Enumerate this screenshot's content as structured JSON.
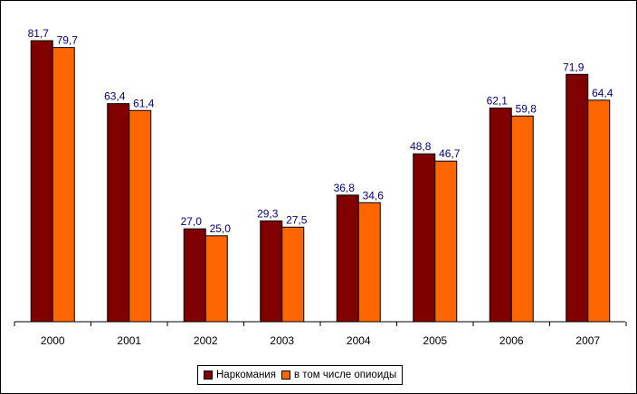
{
  "chart_data": {
    "type": "bar",
    "categories": [
      "2000",
      "2001",
      "2002",
      "2003",
      "2004",
      "2005",
      "2006",
      "2007"
    ],
    "series": [
      {
        "name": "Наркомания",
        "color": "#800000",
        "values": [
          81.7,
          63.4,
          27.0,
          29.3,
          36.8,
          48.8,
          62.1,
          71.9
        ],
        "labels": [
          "81,7",
          "63,4",
          "27,0",
          "29,3",
          "36,8",
          "48,8",
          "62,1",
          "71,9"
        ]
      },
      {
        "name": "в том числе опиоиды",
        "color": "#ff6600",
        "values": [
          79.7,
          61.4,
          25.0,
          27.5,
          34.6,
          46.7,
          59.8,
          64.4
        ],
        "labels": [
          "79,7",
          "61,4",
          "25,0",
          "27,5",
          "34,6",
          "46,7",
          "59,8",
          "64,4"
        ]
      }
    ],
    "title": "",
    "xlabel": "",
    "ylabel": "",
    "ylim": [
      0,
      81.7
    ],
    "grid": false,
    "legend_position": "bottom"
  }
}
